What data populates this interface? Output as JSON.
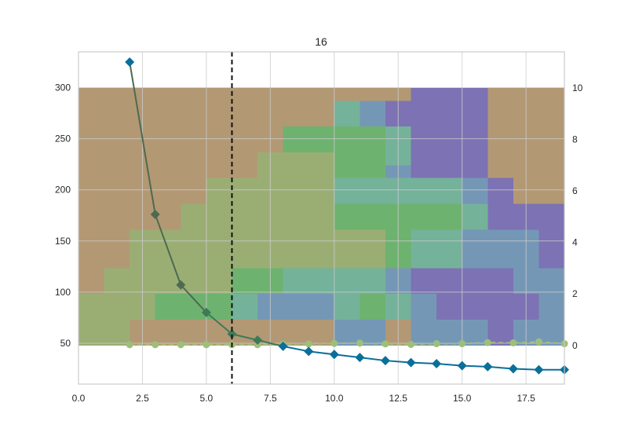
{
  "chart_data": {
    "type": "line",
    "title": "16",
    "xlabel": "",
    "ylabel": "",
    "y2label": "",
    "xlim": [
      0,
      19
    ],
    "ylim": [
      10,
      335
    ],
    "y2lim": [
      -1.5,
      11.4
    ],
    "x_ticks": [
      "0.0",
      "2.5",
      "5.0",
      "7.5",
      "10.0",
      "12.5",
      "15.0",
      "17.5"
    ],
    "y_ticks": [
      "50",
      "100",
      "150",
      "200",
      "250",
      "300"
    ],
    "y2_ticks": [
      "0",
      "2",
      "4",
      "6",
      "8",
      "10"
    ],
    "grid": true,
    "legend": "none",
    "vertical_line": {
      "x": 6,
      "style": "dashed",
      "color": "#111111"
    },
    "series": [
      {
        "axis": "left",
        "marker": "diamond",
        "color": "#0a6f9a",
        "x": [
          2,
          3,
          4,
          5,
          6,
          7,
          8,
          9,
          10,
          11,
          12,
          13,
          14,
          15,
          16,
          17,
          18,
          19
        ],
        "values": [
          325,
          176,
          107,
          80,
          59,
          53,
          47,
          42,
          39,
          36,
          33,
          31,
          30,
          28,
          27,
          25,
          24,
          24
        ]
      },
      {
        "axis": "right",
        "marker": "circle",
        "style": "dashed",
        "color": "#9ebf7a",
        "x": [
          2,
          3,
          4,
          5,
          6,
          7,
          8,
          9,
          10,
          11,
          12,
          13,
          14,
          15,
          16,
          17,
          18,
          19
        ],
        "values": [
          0.03,
          0.03,
          0.03,
          0.03,
          0.03,
          0.03,
          0.05,
          0.06,
          0.08,
          0.09,
          0.06,
          0.04,
          0.07,
          0.07,
          0.11,
          0.1,
          0.14,
          0.07
        ]
      }
    ],
    "background_blocks": {
      "rows": [
        "TTTTTTTTTTTTTPPPTTTT",
        "TTTTTTTTTTSQPPPPTTTT",
        "TTTTTTTTTTSQPPPPTTTT",
        "TTTTTTTTGGGGSPPPTTTT",
        "TTTTTTTTGGGGSPPPTTTT",
        "TTTTTTTLLLGGSPPPTTTT",
        "TTTTTTTLLLGGQPPPTTTT",
        "TTTTTLLLLLSSSSSQPTTT",
        "TTTTTLLLLLSSSSSQPTTT",
        "TTTTLLLLLLGGGGGSPPPT",
        "TTTTLLLLLLGGGGGSPPPT",
        "TTLLLLLLLLLLGSSQQQPT",
        "TTLLLLLLLLLLGSSQQQPT",
        "TTLLLLLLLLLLGSSQQQPT",
        "TLLLLLGGSSSSQPPPPQQT",
        "TLLLLLGGSSSSQPPPPQQT",
        "LLLGGGSQQQSGSQPPPPQP",
        "LLLGGGSQQQSGSQPPPPQP",
        "LLTTTTTTTTQQTQQQPQQT",
        "LLTTTTTTTTQQTQQQPQQT"
      ],
      "x_start": 0,
      "x_step": 1,
      "y2_top": 10,
      "y2_step": 0.5,
      "colors": {
        "T": "#b39874",
        "L": "#9aae74",
        "G": "#6eb26f",
        "S": "#74b29a",
        "Q": "#7597b6",
        "P": "#7d72b4"
      }
    }
  }
}
